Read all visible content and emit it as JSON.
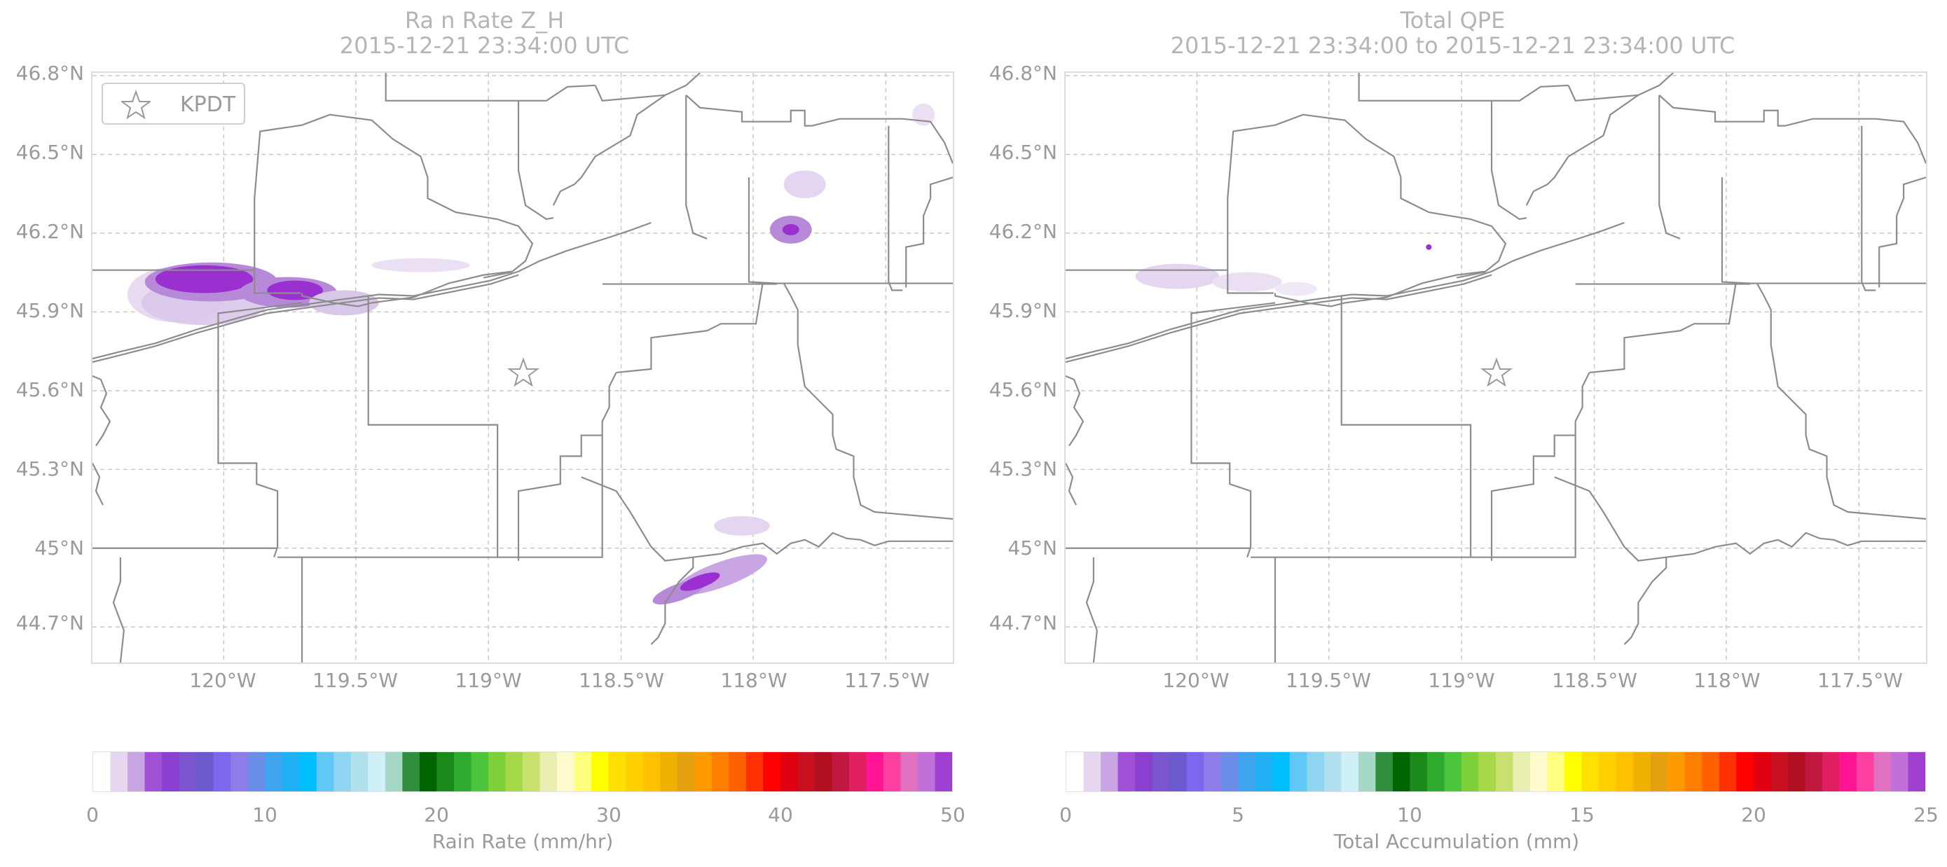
{
  "panels": [
    {
      "title_line1": "Ra n Rate Z_H",
      "title_line2": "2015-12-21 23:34:00 UTC",
      "legend_label": "KPDT",
      "colorbar_ticks": [
        "0",
        "10",
        "20",
        "30",
        "40",
        "50"
      ],
      "colorbar_label": "Rain Rate (mm/hr)"
    },
    {
      "title_line1": "Total QPE",
      "title_line2": "2015-12-21 23:34:00 to 2015-12-21 23:34:00 UTC",
      "colorbar_ticks": [
        "0",
        "5",
        "10",
        "15",
        "20",
        "25"
      ],
      "colorbar_label": "Total Accumulation (mm)"
    }
  ],
  "lat_ticks": [
    "46.8°N",
    "46.5°N",
    "46.2°N",
    "45.9°N",
    "45.6°N",
    "45.3°N",
    "45°N",
    "44.7°N"
  ],
  "lon_ticks": [
    "120°W",
    "119.5°W",
    "119°W",
    "118.5°W",
    "118°W",
    "117.5°W"
  ],
  "colors": {
    "precip_light": "#d9c7ea",
    "precip_mid": "#b68ad8",
    "precip_heavy": "#9b30d0",
    "borders": "#8c8c8c",
    "grid": "#c8c8c8"
  },
  "colormap": [
    "#ffffff",
    "#e6d6f0",
    "#c9a6e3",
    "#a050d4",
    "#8a3fd0",
    "#7a55cf",
    "#6a5acd",
    "#7b68ee",
    "#8e7ce8",
    "#6a8ee8",
    "#3fa5f0",
    "#1fb0f5",
    "#00bfff",
    "#5fc8f5",
    "#8fd4f0",
    "#b0e0ee",
    "#d0f0f8",
    "#a6d8c8",
    "#2f8f3f",
    "#006400",
    "#1a8a1a",
    "#2eaa2e",
    "#4cc43c",
    "#7ed03a",
    "#a6d84a",
    "#c8e06e",
    "#e8efb0",
    "#fffacd",
    "#ffff80",
    "#ffff00",
    "#ffe000",
    "#ffd000",
    "#ffc000",
    "#f0b000",
    "#e5a010",
    "#ff9a00",
    "#ff8000",
    "#ff6000",
    "#ff3000",
    "#ff0000",
    "#e00010",
    "#c81020",
    "#b01020",
    "#c01840",
    "#e02060",
    "#ff1493",
    "#ff40a0",
    "#e070c0",
    "#c070d8",
    "#a040d0"
  ]
}
